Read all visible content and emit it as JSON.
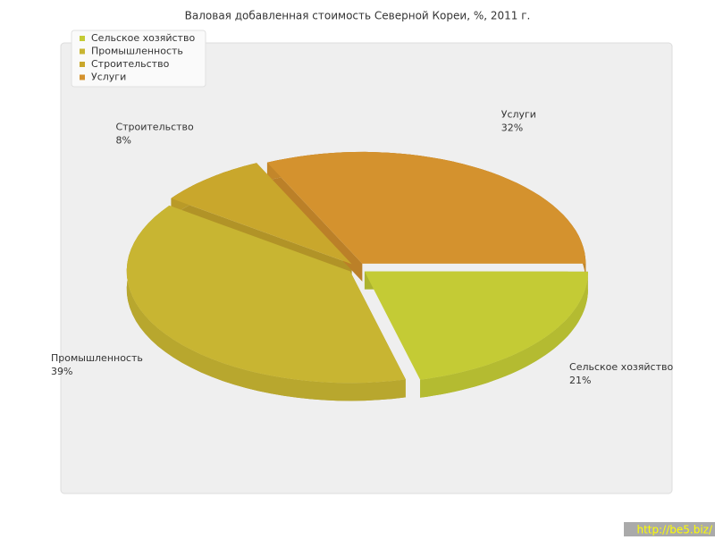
{
  "chart_data": {
    "type": "pie",
    "title": "Валовая добавленная стоимость Северной Кореи, %, 2011 г.",
    "categories": [
      "Сельское хозяйство",
      "Промышленность",
      "Строительство",
      "Услуги"
    ],
    "values": [
      21,
      39,
      8,
      32
    ],
    "value_labels": [
      "21%",
      "39%",
      "8%",
      "32%"
    ],
    "colors": [
      "#c4cb35",
      "#c8b532",
      "#c9a72c",
      "#d4922e"
    ],
    "legend": "top-left",
    "watermark": "http://be5.biz/"
  }
}
